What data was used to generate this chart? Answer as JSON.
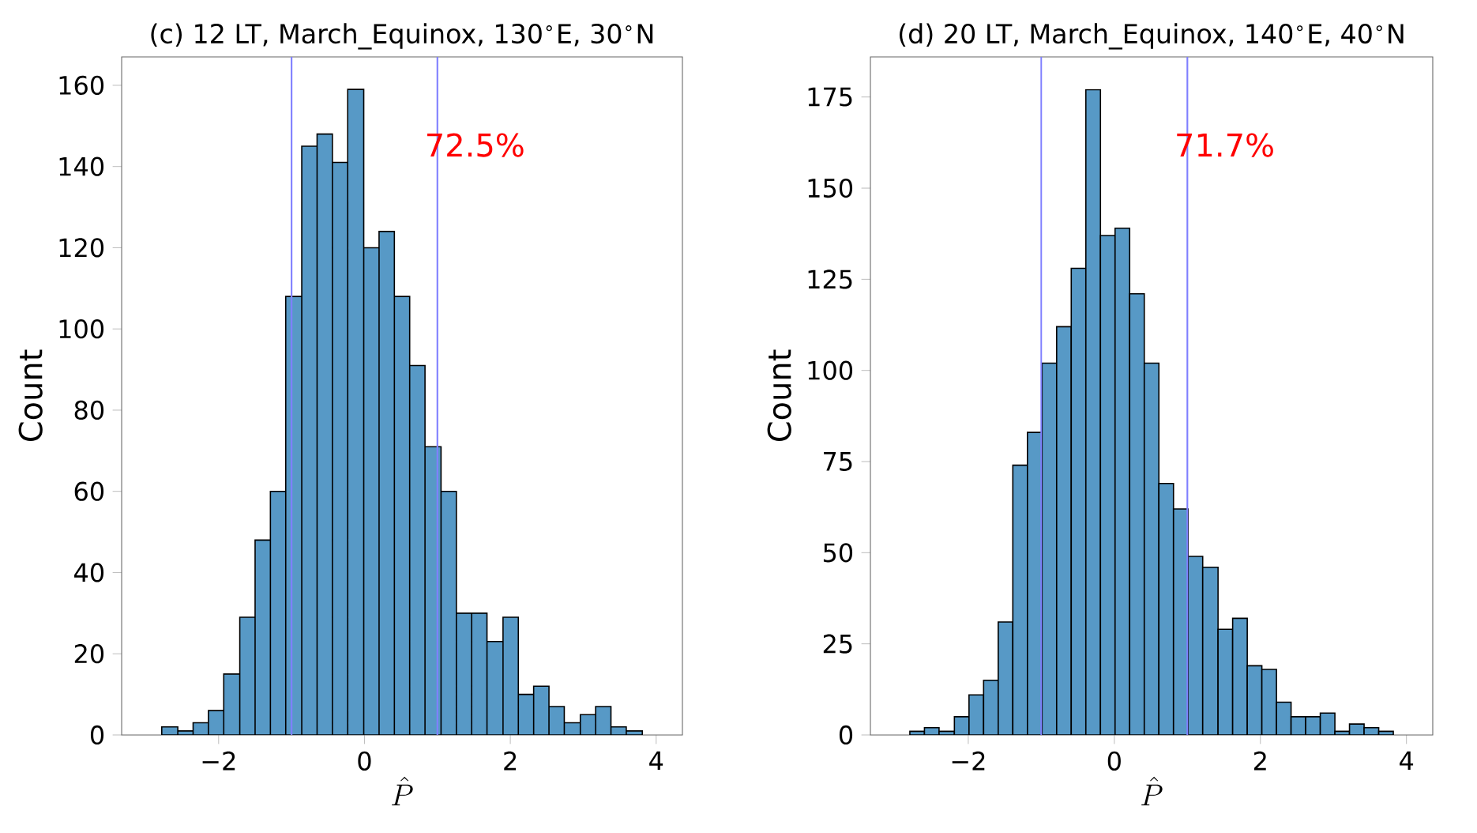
{
  "chart_data": [
    {
      "type": "histogram",
      "title": "(c) 12 LT, March_Equinox, 130$^{∘}$E, 30$^{∘}$N",
      "xlabel": "\\hat{P}",
      "ylabel": "Count",
      "bins": [
        -2.78,
        -2.56,
        -2.35,
        -2.14,
        -1.93,
        -1.71,
        -1.5,
        -1.29,
        -1.08,
        -0.86,
        -0.65,
        -0.44,
        -0.23,
        -0.01,
        0.2,
        0.41,
        0.62,
        0.83,
        1.05,
        1.26,
        1.47,
        1.68,
        1.9,
        2.11,
        2.32,
        2.53,
        2.74,
        2.96,
        3.17,
        3.38,
        3.59,
        3.81
      ],
      "values": [
        2,
        1,
        3,
        6,
        15,
        29,
        48,
        60,
        108,
        145,
        148,
        141,
        159,
        120,
        124,
        108,
        91,
        71,
        60,
        30,
        30,
        23,
        29,
        10,
        12,
        7,
        3,
        5,
        7,
        2,
        1
      ],
      "color": "#5799c6",
      "xlim": [
        -3.33,
        4.36
      ],
      "ylim": [
        0,
        167
      ],
      "xticks": [
        {
          "value": -2,
          "label": "−2"
        },
        0,
        2,
        4
      ],
      "yticks": [
        0,
        20,
        40,
        60,
        80,
        100,
        120,
        140,
        160
      ],
      "ref_lines": [
        {
          "axis": "x",
          "value": -1,
          "color": "#8080ff"
        },
        {
          "axis": "x",
          "value": 1,
          "color": "#8080ff"
        }
      ],
      "annotations": [
        "72.5%"
      ],
      "grid": false
    },
    {
      "type": "histogram",
      "title": "(d) 20 LT, March_Equinox, 140$^{∘}$E, 40$^{∘}$N",
      "xlabel": "\\hat{P}",
      "ylabel": "Count",
      "bins": [
        -2.8,
        -2.6,
        -2.4,
        -2.19,
        -1.99,
        -1.79,
        -1.59,
        -1.39,
        -1.19,
        -0.99,
        -0.79,
        -0.59,
        -0.39,
        -0.19,
        0.01,
        0.21,
        0.41,
        0.61,
        0.81,
        1.01,
        1.21,
        1.42,
        1.62,
        1.82,
        2.02,
        2.22,
        2.42,
        2.62,
        2.82,
        3.02,
        3.22,
        3.42,
        3.62,
        3.82
      ],
      "values": [
        1,
        2,
        1,
        5,
        11,
        15,
        31,
        74,
        83,
        102,
        112,
        128,
        177,
        137,
        139,
        121,
        102,
        69,
        62,
        49,
        46,
        29,
        32,
        19,
        18,
        9,
        5,
        5,
        6,
        1,
        3,
        2,
        1
      ],
      "color": "#5799c6",
      "xlim": [
        -3.34,
        4.36
      ],
      "ylim": [
        0,
        186
      ],
      "xticks": [
        {
          "value": -2,
          "label": "−2"
        },
        0,
        2,
        4
      ],
      "yticks": [
        0,
        25,
        50,
        75,
        100,
        125,
        150,
        175
      ],
      "ref_lines": [
        {
          "axis": "x",
          "value": -1,
          "color": "#8080ff"
        },
        {
          "axis": "x",
          "value": 1,
          "color": "#8080ff"
        }
      ],
      "annotations": [
        "71.7%"
      ],
      "grid": false
    }
  ]
}
